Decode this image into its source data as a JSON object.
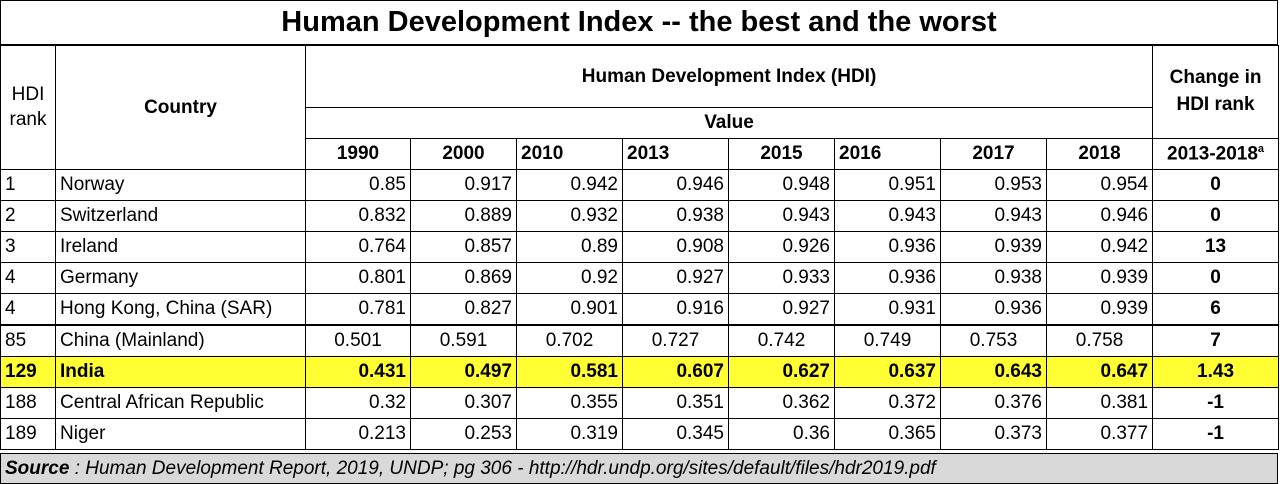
{
  "chart_data": {
    "type": "table",
    "title": "Human Development Index -- the best and the worst",
    "headers": {
      "rank": "HDI rank",
      "country": "Country",
      "hdi": "Human Development Index (HDI)",
      "value": "Value",
      "change": "Change in HDI rank",
      "change_period": "2013-2018",
      "change_superscript": "a"
    },
    "years": [
      "1990",
      "2000",
      "2010",
      "2013",
      "2015",
      "2016",
      "2017",
      "2018"
    ],
    "rows": [
      {
        "rank": "1",
        "country": "Norway",
        "values": [
          "0.85",
          "0.917",
          "0.942",
          "0.946",
          "0.948",
          "0.951",
          "0.953",
          "0.954"
        ],
        "change": "0"
      },
      {
        "rank": "2",
        "country": "Switzerland",
        "values": [
          "0.832",
          "0.889",
          "0.932",
          "0.938",
          "0.943",
          "0.943",
          "0.943",
          "0.946"
        ],
        "change": "0"
      },
      {
        "rank": "3",
        "country": "Ireland",
        "values": [
          "0.764",
          "0.857",
          "0.89",
          "0.908",
          "0.926",
          "0.936",
          "0.939",
          "0.942"
        ],
        "change": "13"
      },
      {
        "rank": "4",
        "country": "Germany",
        "values": [
          "0.801",
          "0.869",
          "0.92",
          "0.927",
          "0.933",
          "0.936",
          "0.938",
          "0.939"
        ],
        "change": "0"
      },
      {
        "rank": "4",
        "country": "Hong Kong, China (SAR)",
        "values": [
          "0.781",
          "0.827",
          "0.901",
          "0.916",
          "0.927",
          "0.931",
          "0.936",
          "0.939"
        ],
        "change": "6"
      },
      {
        "rank": "85",
        "country": "China (Mainland)",
        "values": [
          "0.501",
          "0.591",
          "0.702",
          "0.727",
          "0.742",
          "0.749",
          "0.753",
          "0.758"
        ],
        "change": "7"
      },
      {
        "rank": "129",
        "country": "India",
        "values": [
          "0.431",
          "0.497",
          "0.581",
          "0.607",
          "0.627",
          "0.637",
          "0.643",
          "0.647"
        ],
        "change": "1.43",
        "highlight": true
      },
      {
        "rank": "188",
        "country": "Central African Republic",
        "values": [
          "0.32",
          "0.307",
          "0.355",
          "0.351",
          "0.362",
          "0.372",
          "0.376",
          "0.381"
        ],
        "change": "-1"
      },
      {
        "rank": "189",
        "country": "Niger",
        "values": [
          "0.213",
          "0.253",
          "0.319",
          "0.345",
          "0.36",
          "0.365",
          "0.373",
          "0.377"
        ],
        "change": "-1"
      }
    ],
    "source_label": "Source",
    "source_text": " : Human Development Report, 2019, UNDP; pg 306 - http://hdr.undp.org/sites/default/files/hdr2019.pdf",
    "highlight_color": "#ffff33",
    "source_bg": "#d9d9d9"
  }
}
